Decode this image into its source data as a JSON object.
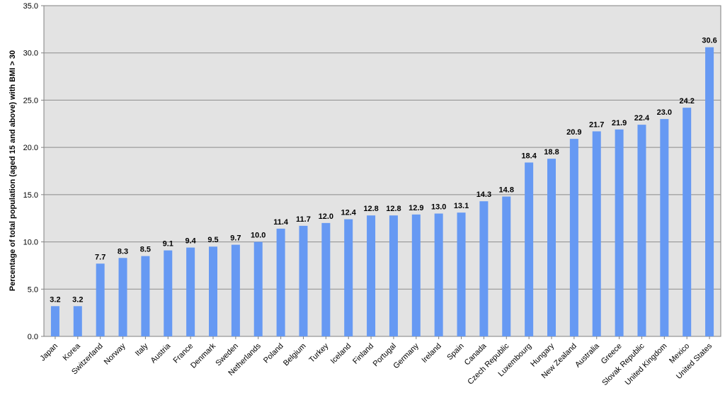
{
  "chart_data": {
    "type": "bar",
    "ylabel": "Percentage of total population  (aged 15 and above) with BMI > 30",
    "xlabel": "",
    "ylim": [
      0,
      35
    ],
    "ytick_step": 5,
    "grid": true,
    "colors": {
      "bar": "#6699f3",
      "plot_bg": "#e3e3e3",
      "grid": "#8c8c8c",
      "axis": "#808080"
    },
    "categories": [
      "Japan",
      "Korea",
      "Switzerland",
      "Norway",
      "Italy",
      "Austria",
      "France",
      "Denmark",
      "Sweden",
      "Netherlands",
      "Poland",
      "Belgium",
      "Turkey",
      "Iceland",
      "Finland",
      "Portugal",
      "Germany",
      "Ireland",
      "Spain",
      "Canada",
      "Czech Republic",
      "Luxembourg",
      "Hungary",
      "New Zealand",
      "Australia",
      "Greece",
      "Slovak Republic",
      "United Kingdom",
      "Mexico",
      "United States"
    ],
    "values": [
      3.2,
      3.2,
      7.7,
      8.3,
      8.5,
      9.1,
      9.4,
      9.5,
      9.7,
      10.0,
      11.4,
      11.7,
      12.0,
      12.4,
      12.8,
      12.8,
      12.9,
      13.0,
      13.1,
      14.3,
      14.8,
      18.4,
      18.8,
      20.9,
      21.7,
      21.9,
      22.4,
      23.0,
      24.2,
      30.6
    ]
  }
}
